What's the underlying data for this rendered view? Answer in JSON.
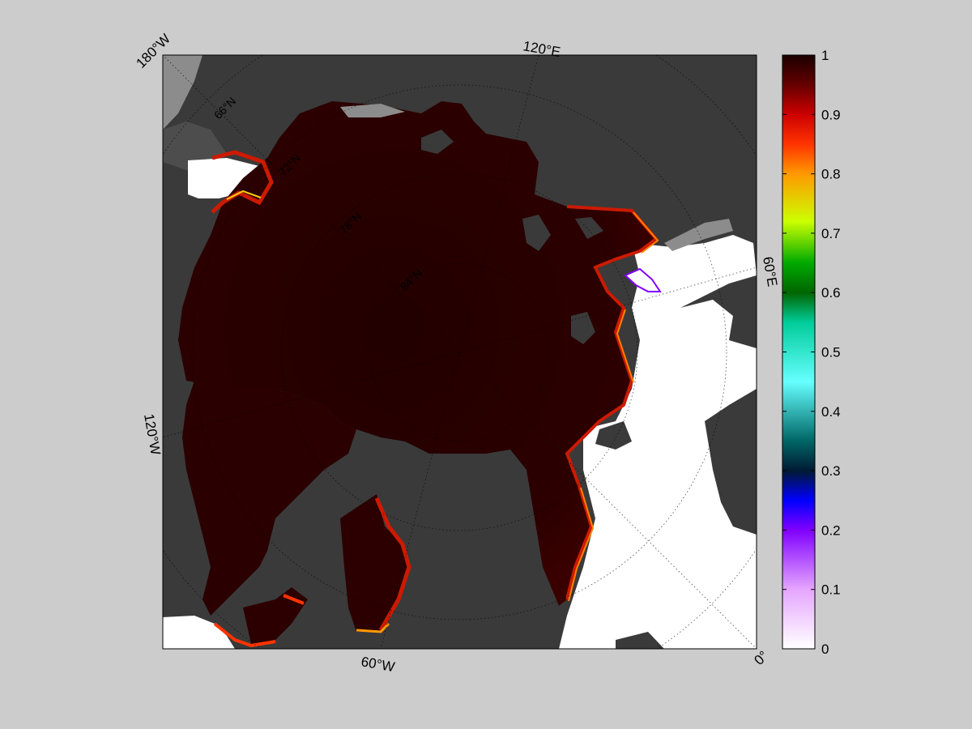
{
  "map": {
    "projection": "polar stereographic (north)",
    "variable_shown": "sea ice concentration (fraction)",
    "edge_labels": {
      "top_left": "180°W",
      "top": "120°E",
      "right": "60°E",
      "left": "120°W",
      "bottom": "60°W",
      "bottom_right": "0°"
    },
    "latitude_labels": [
      "66°N",
      "72°N",
      "78°N",
      "84°N"
    ],
    "colors": {
      "background": "#cccccc",
      "land": "#3a3a3a",
      "land_alt": "#4d4d4d",
      "coast_gray": "#8c8c8c",
      "open_water": "#ffffff",
      "ice_full": "#2a0000",
      "ice_edge": "#cc1a00",
      "ice_mid": "#ff8000",
      "ice_low": "#ffff00",
      "grid_lines": "#000000"
    }
  },
  "colorbar": {
    "min": 0,
    "max": 1,
    "tick_labels": [
      "1",
      "0.9",
      "0.8",
      "0.7",
      "0.6",
      "0.5",
      "0.4",
      "0.3",
      "0.2",
      "0.1",
      "0"
    ],
    "tick_values": [
      1,
      0.9,
      0.8,
      0.7,
      0.6,
      0.5,
      0.4,
      0.3,
      0.2,
      0.1,
      0
    ],
    "colormap_stops": [
      {
        "v": 0.0,
        "c": "#ffffff"
      },
      {
        "v": 0.1,
        "c": "#e5a6ff"
      },
      {
        "v": 0.2,
        "c": "#8000ff"
      },
      {
        "v": 0.25,
        "c": "#0000ff"
      },
      {
        "v": 0.3,
        "c": "#001a33"
      },
      {
        "v": 0.35,
        "c": "#006666"
      },
      {
        "v": 0.45,
        "c": "#66ffff"
      },
      {
        "v": 0.55,
        "c": "#00cc99"
      },
      {
        "v": 0.6,
        "c": "#006600"
      },
      {
        "v": 0.65,
        "c": "#00aa00"
      },
      {
        "v": 0.72,
        "c": "#ccff00"
      },
      {
        "v": 0.8,
        "c": "#ff9900"
      },
      {
        "v": 0.85,
        "c": "#ff3300"
      },
      {
        "v": 0.9,
        "c": "#cc0000"
      },
      {
        "v": 0.95,
        "c": "#660000"
      },
      {
        "v": 1.0,
        "c": "#1a0000"
      }
    ]
  }
}
